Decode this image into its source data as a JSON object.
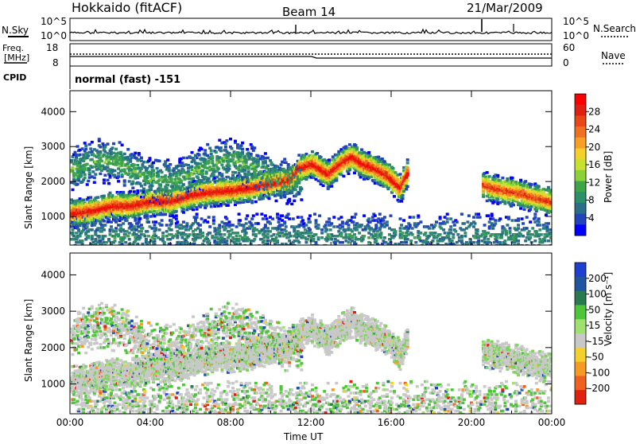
{
  "header": {
    "station": "Hokkaido (fitACF)",
    "beam": "Beam 14",
    "date": "21/Mar/2009"
  },
  "top_panels": {
    "nsky_label": "N.Sky",
    "nsearch_label": "N.Search",
    "noise_ticks": [
      "10^5",
      "10^0"
    ],
    "freq_label_1": "Freq.",
    "freq_label_2": "[MHz]",
    "freq_ticks": [
      "18",
      "8"
    ],
    "nave_label": "Nave",
    "nave_ticks": [
      "60",
      "0"
    ],
    "cpid_label": "CPID",
    "cpid_value": "normal (fast) -151"
  },
  "chart_data": [
    {
      "type": "heatmap",
      "name": "power",
      "xlabel": "",
      "ylabel": "Slant Range [km]",
      "x_ticks": [
        "00:00",
        "04:00",
        "08:00",
        "12:00",
        "16:00",
        "20:00",
        "00:00"
      ],
      "y_ticks": [
        1000,
        2000,
        3000,
        4000
      ],
      "ylim": [
        180,
        4600
      ],
      "colorbar": {
        "label": "Power [dB]",
        "ticks": [
          "4",
          "8",
          "12",
          "16",
          "20",
          "24",
          "28"
        ],
        "colors": [
          "#0000ff",
          "#2244bb",
          "#2a6f8a",
          "#2d8f6a",
          "#3fa34a",
          "#8dd13a",
          "#c8e02f",
          "#f4d02a",
          "#f7a024",
          "#f07020",
          "#e84818",
          "#e02010",
          "#ff0000"
        ]
      },
      "features": [
        {
          "type": "band",
          "points": [
            [
              0,
              1080
            ],
            [
              1,
              1150
            ],
            [
              2,
              1290
            ],
            [
              3,
              1300
            ],
            [
              4,
              1420
            ],
            [
              5,
              1430
            ],
            [
              6,
              1600
            ],
            [
              7,
              1700
            ],
            [
              8,
              1740
            ],
            [
              9,
              1810
            ],
            [
              10,
              1950
            ],
            [
              11,
              2050
            ],
            [
              11.3,
              2350
            ],
            [
              12,
              2500
            ],
            [
              12.8,
              2200
            ],
            [
              13.5,
              2550
            ],
            [
              14,
              2700
            ],
            [
              14.5,
              2500
            ],
            [
              15,
              2400
            ],
            [
              15.8,
              2150
            ],
            [
              16.4,
              1800
            ],
            [
              16.8,
              2300
            ]
          ],
          "halfwidth": 180,
          "level": 26
        },
        {
          "type": "band",
          "points": [
            [
              20.5,
              1900
            ],
            [
              21,
              1800
            ],
            [
              22,
              1700
            ],
            [
              23,
              1550
            ],
            [
              24,
              1400
            ]
          ],
          "halfwidth": 200,
          "level": 22
        }
      ]
    },
    {
      "type": "heatmap",
      "name": "velocity",
      "xlabel": "Time UT",
      "ylabel": "Slant Range [km]",
      "x_ticks": [
        "00:00",
        "04:00",
        "08:00",
        "12:00",
        "16:00",
        "20:00",
        "00:00"
      ],
      "y_ticks": [
        1000,
        2000,
        3000,
        4000
      ],
      "ylim": [
        180,
        4600
      ],
      "colorbar": {
        "label": "Velocity [m s⁻¹]",
        "ticks": [
          "200",
          "100",
          "50",
          "15",
          "-15",
          "-50",
          "-100",
          "-200"
        ],
        "colors": [
          "#1f3fd0",
          "#2255a0",
          "#2a7a50",
          "#4fc63a",
          "#a0e070",
          "#c8c8c8",
          "#f4d02a",
          "#f79a24",
          "#f06020",
          "#e02010"
        ]
      },
      "features": [
        {
          "type": "region",
          "ground_scatter": true
        }
      ]
    }
  ]
}
